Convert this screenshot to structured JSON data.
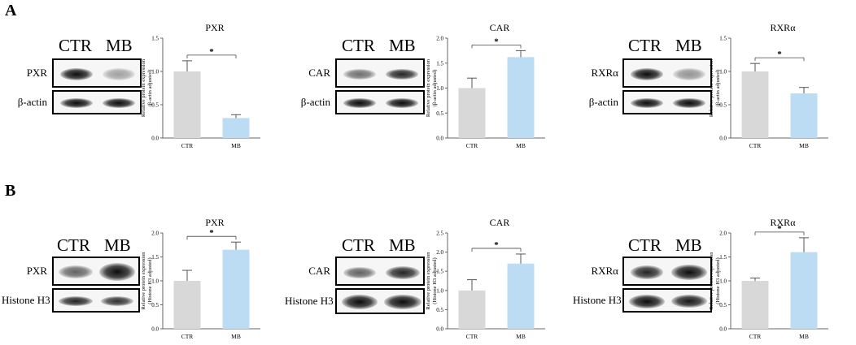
{
  "panels": [
    {
      "label": "A",
      "loading_control": "β-actin",
      "blots": [
        {
          "header": [
            "CTR",
            "MB"
          ],
          "target": "PXR",
          "control": "β-actin",
          "target_bands": [
            {
              "intensity": 0.95,
              "width": 0.85
            },
            {
              "intensity": 0.35,
              "width": 0.75
            }
          ],
          "control_bands": [
            {
              "intensity": 0.95,
              "width": 0.85
            },
            {
              "intensity": 0.95,
              "width": 0.85
            }
          ]
        },
        {
          "header": [
            "CTR",
            "MB"
          ],
          "target": "CAR",
          "control": "β-actin",
          "target_bands": [
            {
              "intensity": 0.55,
              "width": 0.75
            },
            {
              "intensity": 0.85,
              "width": 0.85
            }
          ],
          "control_bands": [
            {
              "intensity": 0.95,
              "width": 0.85
            },
            {
              "intensity": 0.95,
              "width": 0.85
            }
          ]
        },
        {
          "header": [
            "CTR",
            "MB"
          ],
          "target": "RXRα",
          "control": "β-actin",
          "target_bands": [
            {
              "intensity": 0.95,
              "width": 0.85
            },
            {
              "intensity": 0.4,
              "width": 0.75
            }
          ],
          "control_bands": [
            {
              "intensity": 0.95,
              "width": 0.85
            },
            {
              "intensity": 0.95,
              "width": 0.85
            }
          ]
        }
      ]
    },
    {
      "label": "B",
      "loading_control": "Histone H3",
      "blots": [
        {
          "header": [
            "CTR",
            "MB"
          ],
          "target": "PXR",
          "control": "Histone H3",
          "target_bands": [
            {
              "intensity": 0.6,
              "width": 0.8
            },
            {
              "intensity": 0.95,
              "width": 0.9
            }
          ],
          "control_bands": [
            {
              "intensity": 0.85,
              "width": 0.85
            },
            {
              "intensity": 0.8,
              "width": 0.8
            }
          ]
        },
        {
          "header": [
            "CTR",
            "MB"
          ],
          "target": "CAR",
          "control": "Histone H3",
          "target_bands": [
            {
              "intensity": 0.6,
              "width": 0.75
            },
            {
              "intensity": 0.85,
              "width": 0.85
            }
          ],
          "control_bands": [
            {
              "intensity": 0.95,
              "width": 0.9
            },
            {
              "intensity": 0.95,
              "width": 0.9
            }
          ]
        },
        {
          "header": [
            "CTR",
            "MB"
          ],
          "target": "RXRα",
          "control": "Histone H3",
          "target_bands": [
            {
              "intensity": 0.85,
              "width": 0.85
            },
            {
              "intensity": 0.95,
              "width": 0.9
            }
          ],
          "control_bands": [
            {
              "intensity": 0.95,
              "width": 0.9
            },
            {
              "intensity": 0.9,
              "width": 0.85
            }
          ]
        }
      ]
    }
  ],
  "chart_data": [
    {
      "type": "bar",
      "panel": "A",
      "title": "PXR",
      "categories": [
        "CTR",
        "MB"
      ],
      "values": [
        1.0,
        0.3
      ],
      "errors": [
        0.16,
        0.05
      ],
      "ylim": [
        0,
        1.5
      ],
      "yticks": [
        0.0,
        0.5,
        1.0,
        1.5
      ],
      "ytick_labels": [
        "0.0",
        "0.5",
        "1.0",
        "1.5"
      ],
      "ylabel": [
        "Relative protein expression",
        "(β-actin adjusted)"
      ],
      "xlabel": "",
      "significance": {
        "label": "*",
        "between": [
          "CTR",
          "MB"
        ]
      },
      "colors": [
        "#d8d8d8",
        "#bcdcf4"
      ],
      "grid": false
    },
    {
      "type": "bar",
      "panel": "A",
      "title": "CAR",
      "categories": [
        "CTR",
        "MB"
      ],
      "values": [
        1.0,
        1.62
      ],
      "errors": [
        0.2,
        0.13
      ],
      "ylim": [
        0,
        2.0
      ],
      "yticks": [
        0.0,
        0.5,
        1.0,
        1.5,
        2.0
      ],
      "ytick_labels": [
        "0.0",
        "0.5",
        "1.0",
        "1.5",
        "2.0"
      ],
      "ylabel": [
        "Relative protein expression",
        "(β-actin adjusted)"
      ],
      "xlabel": "",
      "significance": {
        "label": "*",
        "between": [
          "CTR",
          "MB"
        ]
      },
      "colors": [
        "#d8d8d8",
        "#bcdcf4"
      ],
      "grid": false
    },
    {
      "type": "bar",
      "panel": "A",
      "title": "RXRα",
      "categories": [
        "CTR",
        "MB"
      ],
      "values": [
        1.0,
        0.67
      ],
      "errors": [
        0.12,
        0.09
      ],
      "ylim": [
        0,
        1.5
      ],
      "yticks": [
        0.0,
        0.5,
        1.0,
        1.5
      ],
      "ytick_labels": [
        "0.0",
        "0.5",
        "1.0",
        "1.5"
      ],
      "ylabel": [
        "Relative protein expression",
        "(β-actin adjusted)"
      ],
      "xlabel": "",
      "significance": {
        "label": "*",
        "between": [
          "CTR",
          "MB"
        ]
      },
      "colors": [
        "#d8d8d8",
        "#bcdcf4"
      ],
      "grid": false
    },
    {
      "type": "bar",
      "panel": "B",
      "title": "PXR",
      "categories": [
        "CTR",
        "MB"
      ],
      "values": [
        1.0,
        1.65
      ],
      "errors": [
        0.22,
        0.16
      ],
      "ylim": [
        0,
        2.0
      ],
      "yticks": [
        0.0,
        0.5,
        1.0,
        1.5,
        2.0
      ],
      "ytick_labels": [
        "0.0",
        "0.5",
        "1.0",
        "1.5",
        "2.0"
      ],
      "ylabel": [
        "Relative protein expression",
        "(Histone H3 adjusted)"
      ],
      "xlabel": "",
      "significance": {
        "label": "*",
        "between": [
          "CTR",
          "MB"
        ]
      },
      "colors": [
        "#d8d8d8",
        "#bcdcf4"
      ],
      "grid": false
    },
    {
      "type": "bar",
      "panel": "B",
      "title": "CAR",
      "categories": [
        "CTR",
        "MB"
      ],
      "values": [
        1.0,
        1.7
      ],
      "errors": [
        0.28,
        0.25
      ],
      "ylim": [
        0,
        2.5
      ],
      "yticks": [
        0.0,
        0.5,
        1.0,
        1.5,
        2.0,
        2.5
      ],
      "ytick_labels": [
        "0.0",
        "0.5",
        "1.0",
        "1.5",
        "2.0",
        "2.5"
      ],
      "ylabel": [
        "Relative protein expression",
        "(Histone H3 adjusted)"
      ],
      "xlabel": "",
      "significance": {
        "label": "*",
        "between": [
          "CTR",
          "MB"
        ]
      },
      "colors": [
        "#d8d8d8",
        "#bcdcf4"
      ],
      "grid": false
    },
    {
      "type": "bar",
      "panel": "B",
      "title": "RXRα",
      "categories": [
        "CTR",
        "MB"
      ],
      "values": [
        1.0,
        1.6
      ],
      "errors": [
        0.06,
        0.3
      ],
      "ylim": [
        0,
        2.0
      ],
      "yticks": [
        0.0,
        0.5,
        1.0,
        1.5,
        2.0
      ],
      "ytick_labels": [
        "0.0",
        "0.5",
        "1.0",
        "1.5",
        "2.0"
      ],
      "ylabel": [
        "Relative protein expression",
        "(Histone H3 adjusted)"
      ],
      "xlabel": "",
      "significance": {
        "label": "*",
        "between": [
          "CTR",
          "MB"
        ]
      },
      "colors": [
        "#d8d8d8",
        "#bcdcf4"
      ],
      "grid": false
    }
  ]
}
